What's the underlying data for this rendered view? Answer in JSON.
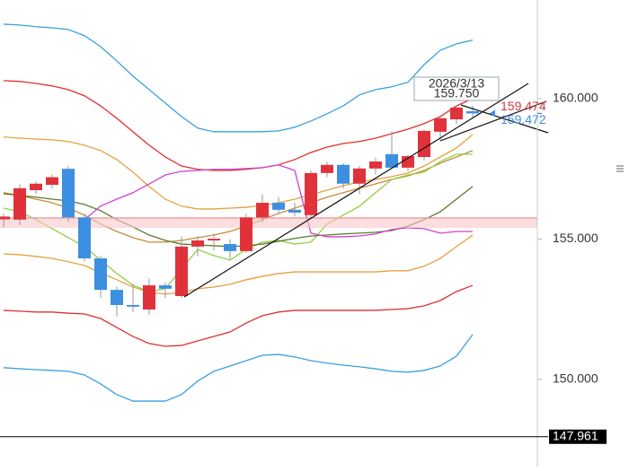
{
  "chart_data": {
    "type": "candlestick",
    "ylim": [
      146.9,
      163.51
    ],
    "yticks": [
      {
        "value": 160,
        "label": "160.000"
      },
      {
        "value": 155,
        "label": "155.000"
      },
      {
        "value": 150,
        "label": "150.000"
      }
    ],
    "grid": false,
    "up_color": "#e0323a",
    "down_color": "#3d8fe0",
    "open": [
      155.7,
      155.69,
      156.74,
      156.93,
      157.5,
      155.77,
      154.31,
      153.19,
      152.65,
      152.49,
      153.35,
      152.97,
      154.73,
      154.95,
      154.82,
      154.57,
      155.77,
      156.29,
      156.04,
      155.85,
      157.35,
      157.64,
      156.97,
      157.51,
      158.02,
      157.54,
      157.92,
      158.82,
      159.26,
      159.55
    ],
    "high": [
      155.9,
      156.95,
      157.05,
      157.3,
      157.6,
      155.9,
      154.4,
      153.3,
      153.4,
      153.6,
      153.45,
      155.1,
      155.1,
      155.2,
      155.0,
      155.9,
      156.6,
      156.5,
      156.3,
      157.45,
      157.75,
      157.7,
      157.6,
      157.9,
      158.85,
      158.0,
      158.9,
      159.4,
      159.75,
      159.75
    ],
    "low": [
      155.4,
      155.5,
      156.6,
      156.8,
      155.6,
      154.2,
      152.9,
      152.24,
      152.4,
      152.3,
      152.9,
      152.9,
      154.4,
      154.6,
      154.3,
      154.5,
      155.6,
      155.9,
      155.8,
      155.7,
      157.2,
      156.8,
      156.6,
      157.3,
      157.5,
      157.4,
      157.8,
      158.5,
      159.1,
      159.3
    ],
    "close": [
      155.8,
      156.81,
      156.97,
      157.2,
      155.77,
      154.31,
      153.19,
      152.65,
      152.59,
      153.35,
      153.23,
      154.73,
      154.95,
      155.01,
      154.57,
      155.77,
      156.29,
      156.04,
      155.94,
      157.35,
      157.64,
      156.97,
      157.51,
      157.76,
      157.54,
      157.95,
      158.85,
      159.3,
      159.68,
      159.472
    ],
    "lines": [
      {
        "color": "#3aa0e0",
        "values": [
          162.65,
          162.62,
          162.56,
          162.52,
          162.46,
          162.24,
          161.85,
          161.34,
          160.8,
          160.32,
          159.84,
          159.36,
          158.95,
          158.82,
          158.82,
          158.82,
          158.82,
          158.85,
          158.98,
          159.2,
          159.46,
          159.74,
          160.13,
          160.32,
          160.42,
          160.58,
          161.21,
          161.72,
          161.95,
          162.08
        ]
      },
      {
        "color": "#e03030",
        "values": [
          160.64,
          160.61,
          160.54,
          160.45,
          160.32,
          160.1,
          159.74,
          159.3,
          158.82,
          158.34,
          157.92,
          157.6,
          157.48,
          157.44,
          157.44,
          157.48,
          157.54,
          157.64,
          157.83,
          158.08,
          158.27,
          158.4,
          158.47,
          158.59,
          158.75,
          158.91,
          159.11,
          159.36,
          159.74,
          160.0
        ]
      },
      {
        "color": "#e8a040",
        "values": [
          158.63,
          158.59,
          158.56,
          158.53,
          158.47,
          158.34,
          158.15,
          157.83,
          157.38,
          156.87,
          156.42,
          156.17,
          156.07,
          156.07,
          156.1,
          156.13,
          156.2,
          156.29,
          156.42,
          156.58,
          156.74,
          156.9,
          157.03,
          157.12,
          157.22,
          157.35,
          157.6,
          157.92,
          158.24,
          158.72
        ]
      },
      {
        "color": "#c88a3a",
        "values": [
          156.65,
          156.55,
          156.42,
          156.29,
          156.1,
          155.85,
          155.53,
          155.27,
          155.05,
          154.89,
          154.89,
          154.95,
          155.05,
          155.14,
          155.27,
          155.46,
          155.69,
          155.91,
          156.1,
          156.29,
          156.49,
          156.65,
          156.81,
          156.96,
          157.12,
          157.25,
          157.44,
          157.7,
          157.92,
          158.15
        ]
      },
      {
        "color": "#e8a040",
        "values": [
          154.47,
          154.44,
          154.38,
          154.31,
          154.19,
          154.06,
          153.8,
          153.55,
          153.29,
          153.1,
          153.04,
          153.1,
          153.23,
          153.29,
          153.39,
          153.55,
          153.67,
          153.77,
          153.83,
          153.83,
          153.83,
          153.83,
          153.83,
          153.83,
          153.87,
          153.87,
          154.03,
          154.31,
          154.73,
          155.14
        ]
      },
      {
        "color": "#e03030",
        "values": [
          152.46,
          152.43,
          152.4,
          152.4,
          152.36,
          152.33,
          152.17,
          151.85,
          151.53,
          151.28,
          151.18,
          151.21,
          151.37,
          151.53,
          151.69,
          152.01,
          152.27,
          152.4,
          152.46,
          152.46,
          152.46,
          152.46,
          152.46,
          152.46,
          152.49,
          152.52,
          152.62,
          152.81,
          153.13,
          153.35
        ]
      },
      {
        "color": "#3aa0e0",
        "values": [
          150.42,
          150.38,
          150.35,
          150.32,
          150.29,
          150.16,
          149.84,
          149.46,
          149.23,
          149.23,
          149.23,
          149.46,
          149.94,
          150.29,
          150.48,
          150.67,
          150.86,
          150.89,
          150.8,
          150.67,
          150.58,
          150.51,
          150.45,
          150.38,
          150.29,
          150.26,
          150.32,
          150.48,
          150.83,
          151.6
        ]
      },
      {
        "color": "#90d040",
        "values": [
          156.1,
          155.97,
          155.69,
          155.37,
          155.05,
          154.73,
          154.25,
          153.77,
          153.35,
          153.13,
          153.23,
          153.93,
          154.63,
          154.41,
          154.25,
          154.63,
          154.89,
          154.95,
          154.82,
          154.89,
          155.53,
          155.85,
          156.17,
          156.65,
          157.12,
          157.28,
          157.38,
          157.76,
          158.02,
          158.02
        ]
      },
      {
        "color": "#5a7a30",
        "values": [
          156.61,
          156.55,
          156.49,
          156.42,
          156.36,
          156.23,
          156.01,
          155.69,
          155.43,
          155.14,
          154.95,
          154.82,
          154.79,
          154.76,
          154.73,
          154.76,
          154.82,
          154.92,
          155.02,
          155.11,
          155.14,
          155.18,
          155.21,
          155.24,
          155.3,
          155.46,
          155.69,
          155.97,
          156.42,
          156.87
        ]
      },
      {
        "color": "#d040d0",
        "values": [
          null,
          null,
          null,
          null,
          null,
          155.69,
          156.17,
          156.42,
          156.65,
          156.96,
          157.28,
          157.41,
          157.44,
          157.48,
          157.48,
          157.51,
          157.54,
          157.64,
          157.44,
          155.21,
          155.08,
          155.08,
          155.11,
          155.18,
          155.34,
          155.4,
          155.37,
          155.21,
          155.27,
          155.27
        ]
      }
    ],
    "markers": [
      {
        "value": 159.474,
        "label": "159.474",
        "color": "#e0323a"
      },
      {
        "value": 159.472,
        "label": "159.472",
        "color": "#3d8fe0"
      },
      {
        "value": 147.961,
        "label": "147.961",
        "color": "#000000"
      }
    ],
    "tooltip": {
      "date": "2026/3/13",
      "price": {
        "value": 159.75,
        "label": "159.750"
      }
    }
  }
}
